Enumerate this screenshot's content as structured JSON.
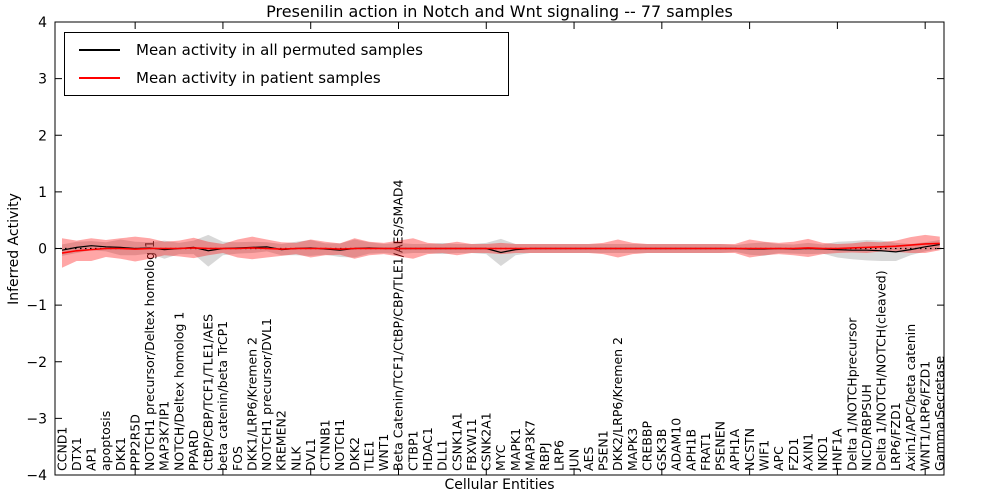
{
  "colors": {
    "background": "#ffffff",
    "axis": "#000000",
    "permuted_line": "#000000",
    "patient_line": "#ff0000",
    "permuted_band": "#999999",
    "patient_band": "#ff0000"
  },
  "legend": {
    "entries": [
      {
        "label": "Mean activity in all permuted samples",
        "color": "#000000"
      },
      {
        "label": "Mean activity in patient samples",
        "color": "#ff0000"
      }
    ]
  },
  "chart_data": {
    "type": "line",
    "title": "Presenilin action in Notch and Wnt signaling -- 77 samples",
    "xlabel": "Cellular Entities",
    "ylabel": "Inferred Activity",
    "ylim": [
      -4,
      4
    ],
    "ytick_labels": [
      "4",
      "3",
      "2",
      "1",
      "0",
      "−1",
      "−2",
      "−3",
      "−4"
    ],
    "grid": false,
    "legend_position": "upper left",
    "zero_line": {
      "style": "dotted",
      "color": "#000000",
      "y": 0
    },
    "categories": [
      "CCND1",
      "DTX1",
      "AP1",
      "apoptosis",
      "DKK1",
      "PPP2R5D",
      "NOTCH1 precursor/Deltex homolog 1",
      "MAP3K7IP1",
      "NOTCH/Deltex homolog 1",
      "PPARD",
      "CtBP/CBP/TCF1/TLE1/AES",
      "beta catenin/beta TrCP1",
      "FOS",
      "DKK1/LRP6/Kremen 2",
      "NOTCH1 precursor/DVL1",
      "KREMEN2",
      "NLK",
      "DVL1",
      "CTNNB1",
      "NOTCH1",
      "DKK2",
      "TLE1",
      "WNT1",
      "Beta Catenin/TCF1/CtBP/CBP/TLE1/AES/SMAD4",
      "CTBP1",
      "HDAC1",
      "DLL1",
      "CSNK1A1",
      "FBXW11",
      "CSNK2A1",
      "MYC",
      "MAPK1",
      "MAP3K7",
      "RBPJ",
      "LRP6",
      "JUN",
      "AES",
      "PSEN1",
      "DKK2/LRP6/Kremen 2",
      "MAPK3",
      "CREBBP",
      "GSK3B",
      "ADAM10",
      "APH1B",
      "FRAT1",
      "PSENEN",
      "APH1A",
      "NCSTN",
      "WIF1",
      "APC",
      "FZD1",
      "AXIN1",
      "NKD1",
      "HNF1A",
      "Delta 1/NOTCHprecursor",
      "NICD/RBPSUH",
      "Delta 1/NOTCH/NOTCH(cleaved)",
      "LRP6/FZD1",
      "Axin1/APC/beta catenin",
      "WNT1/LRP6/FZD1",
      "Gamma Secretase"
    ],
    "series": [
      {
        "name": "Mean activity in all permuted samples",
        "color": "#000000",
        "band_color": "#999999",
        "band_opacity": 0.38,
        "mean": [
          -0.03,
          0.02,
          0.05,
          0.03,
          0.02,
          0.0,
          0.01,
          -0.02,
          0.0,
          0.02,
          -0.04,
          0.0,
          0.01,
          0.02,
          0.03,
          -0.02,
          0.0,
          0.01,
          -0.01,
          -0.03,
          0.0,
          0.01,
          0.0,
          0.0,
          0.0,
          0.0,
          0.0,
          0.0,
          0.0,
          0.0,
          -0.07,
          -0.02,
          0.0,
          0.0,
          0.0,
          0.0,
          0.0,
          0.0,
          0.0,
          0.0,
          0.0,
          0.0,
          0.0,
          0.0,
          0.0,
          0.0,
          0.0,
          -0.01,
          -0.01,
          0.0,
          -0.01,
          0.0,
          -0.01,
          -0.02,
          -0.03,
          -0.03,
          -0.04,
          -0.06,
          -0.02,
          0.03,
          0.07
        ],
        "band": [
          0.1,
          0.1,
          0.08,
          0.08,
          0.14,
          0.12,
          0.1,
          0.16,
          0.1,
          0.12,
          0.28,
          0.12,
          0.1,
          0.1,
          0.08,
          0.1,
          0.12,
          0.14,
          0.1,
          0.12,
          0.16,
          0.1,
          0.08,
          0.1,
          0.08,
          0.08,
          0.1,
          0.08,
          0.08,
          0.1,
          0.24,
          0.1,
          0.08,
          0.08,
          0.08,
          0.08,
          0.08,
          0.08,
          0.08,
          0.08,
          0.08,
          0.08,
          0.08,
          0.08,
          0.08,
          0.08,
          0.06,
          0.1,
          0.12,
          0.08,
          0.08,
          0.1,
          0.08,
          0.14,
          0.16,
          0.18,
          0.18,
          0.16,
          0.1,
          0.08,
          0.08
        ]
      },
      {
        "name": "Mean activity in patient samples",
        "color": "#ff0000",
        "band_color": "#ff0000",
        "band_opacity": 0.35,
        "mean": [
          -0.08,
          -0.04,
          -0.02,
          0.0,
          0.0,
          -0.01,
          0.0,
          0.0,
          0.0,
          0.01,
          0.0,
          0.0,
          0.0,
          0.01,
          0.0,
          -0.01,
          0.0,
          0.0,
          0.0,
          -0.01,
          0.0,
          0.0,
          0.0,
          0.0,
          0.0,
          0.0,
          0.0,
          0.0,
          0.0,
          0.0,
          0.0,
          0.0,
          0.0,
          0.0,
          0.0,
          0.0,
          0.0,
          0.0,
          0.0,
          0.0,
          0.0,
          0.0,
          0.0,
          0.0,
          0.0,
          0.0,
          0.0,
          0.0,
          0.0,
          0.0,
          0.0,
          0.01,
          0.0,
          0.0,
          0.01,
          0.02,
          0.03,
          0.04,
          0.06,
          0.08,
          0.09
        ],
        "band": [
          0.26,
          0.18,
          0.2,
          0.15,
          0.18,
          0.22,
          0.18,
          0.12,
          0.14,
          0.18,
          0.12,
          0.08,
          0.16,
          0.2,
          0.16,
          0.12,
          0.1,
          0.16,
          0.12,
          0.1,
          0.18,
          0.12,
          0.1,
          0.14,
          0.18,
          0.1,
          0.08,
          0.12,
          0.08,
          0.08,
          0.1,
          0.08,
          0.08,
          0.08,
          0.08,
          0.08,
          0.08,
          0.1,
          0.16,
          0.1,
          0.08,
          0.08,
          0.08,
          0.08,
          0.08,
          0.08,
          0.08,
          0.16,
          0.12,
          0.1,
          0.12,
          0.16,
          0.1,
          0.08,
          0.08,
          0.1,
          0.08,
          0.1,
          0.14,
          0.16,
          0.12
        ]
      }
    ]
  }
}
